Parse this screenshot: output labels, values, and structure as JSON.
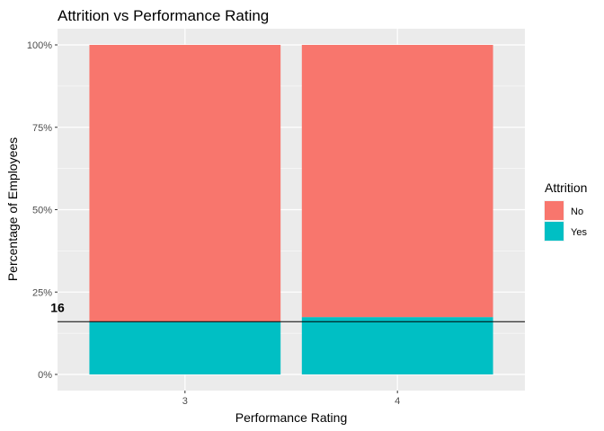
{
  "chart_data": {
    "type": "bar",
    "stacked": true,
    "title": "Attrition vs Performance Rating",
    "xlabel": "Performance Rating",
    "ylabel": "Percentage of Employees",
    "categories": [
      "3",
      "4"
    ],
    "series": [
      {
        "name": "No",
        "values": [
          84,
          82.6
        ]
      },
      {
        "name": "Yes",
        "values": [
          16,
          17.4
        ]
      }
    ],
    "stack_order": [
      "Yes",
      "No"
    ],
    "ylim": [
      0,
      100
    ],
    "yticks": [
      0,
      25,
      50,
      75,
      100
    ],
    "ytick_labels": [
      "0%",
      "25%",
      "50%",
      "75%",
      "100%"
    ],
    "grid": true,
    "legend": {
      "title": "Attrition",
      "position": "right"
    },
    "colors": {
      "No": "#F8766D",
      "Yes": "#00BFC4",
      "panel": "#EBEBEB",
      "grid": "#FFFFFF"
    },
    "reference_line": {
      "y": 16,
      "label": "16",
      "color": "#000000"
    }
  }
}
